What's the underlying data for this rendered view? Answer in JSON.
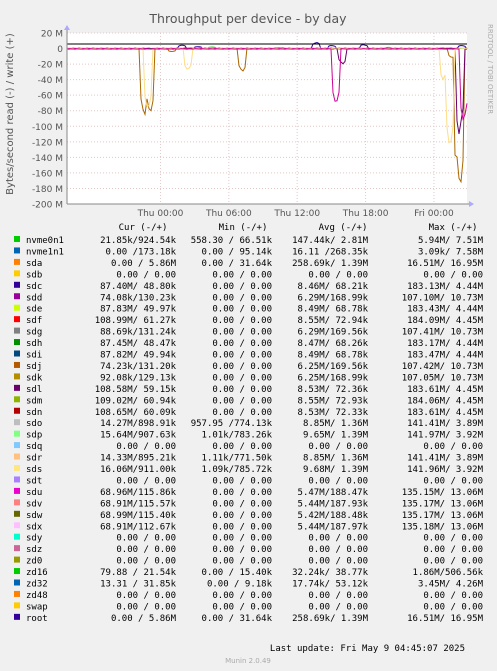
{
  "chart_data": {
    "type": "line",
    "title": "Throughput per device - by day",
    "ylabel": "Bytes/second read (-) / write (+)",
    "side_label": "RRDTOOL / TOBI OETIKER",
    "ylim": [
      -200,
      20
    ],
    "y_ticks": [
      {
        "value": 20,
        "label": "20 M"
      },
      {
        "value": 0,
        "label": "0"
      },
      {
        "value": -20,
        "label": "-20 M"
      },
      {
        "value": -40,
        "label": "-40 M"
      },
      {
        "value": -60,
        "label": "-60 M"
      },
      {
        "value": -80,
        "label": "-80 M"
      },
      {
        "value": -100,
        "label": "-100 M"
      },
      {
        "value": -120,
        "label": "-120 M"
      },
      {
        "value": -140,
        "label": "-140 M"
      },
      {
        "value": -160,
        "label": "-160 M"
      },
      {
        "value": -180,
        "label": "-180 M"
      },
      {
        "value": -200,
        "label": "-200 M"
      }
    ],
    "xlim": [
      -8.2,
      26.9
    ],
    "x_ticks": [
      {
        "value": 0,
        "label": "Thu 00:00"
      },
      {
        "value": 6,
        "label": "Thu 06:00"
      },
      {
        "value": 12,
        "label": "Thu 12:00"
      },
      {
        "value": 18,
        "label": "Thu 18:00"
      },
      {
        "value": 24,
        "label": "Fri 00:00"
      }
    ],
    "grid": true,
    "series": [
      {
        "name": "nvme0n1",
        "color": "#00cc00",
        "spikes": [
          {
            "x": 4.5,
            "y": 2
          },
          {
            "x": 10.5,
            "y": 1.5
          },
          {
            "x": 20.0,
            "y": 1.5
          }
        ]
      },
      {
        "name": "sdc",
        "color": "#330099",
        "spikes": [
          {
            "x": 1.9,
            "y": 4.5
          },
          {
            "x": 3.3,
            "y": 2.5
          },
          {
            "x": 13.7,
            "y": 8
          },
          {
            "x": 15.0,
            "y": 4
          },
          {
            "x": 17.8,
            "y": 5
          },
          {
            "x": 26.4,
            "y": 4
          }
        ]
      },
      {
        "name": "sdj",
        "color": "#aa6600",
        "spikes": [
          {
            "x": -1.4,
            "y": -88
          },
          {
            "x": -0.9,
            "y": -85
          },
          {
            "x": 1.0,
            "y": -4
          },
          {
            "x": 7.2,
            "y": -30
          },
          {
            "x": 25.6,
            "y": -12
          },
          {
            "x": 26.1,
            "y": -175
          },
          {
            "x": 26.3,
            "y": -183
          }
        ]
      },
      {
        "name": "sdl",
        "color": "#660066",
        "spikes": [
          {
            "x": 16.0,
            "y": -20
          },
          {
            "x": 26.2,
            "y": -110
          }
        ]
      },
      {
        "name": "sds",
        "color": "#ffdd88",
        "spikes": [
          {
            "x": -1.1,
            "y": -80
          },
          {
            "x": 2.4,
            "y": -28
          },
          {
            "x": 24.8,
            "y": -40
          },
          {
            "x": 25.4,
            "y": -130
          }
        ]
      },
      {
        "name": "sdu",
        "color": "#cc0099",
        "spikes": [
          {
            "x": 15.4,
            "y": -73
          },
          {
            "x": 26.6,
            "y": -95
          }
        ]
      }
    ],
    "legend": {
      "headers": [
        "Cur (-/+)",
        "Min (-/+)",
        "Avg (-/+)",
        "Max (-/+)"
      ],
      "rows": [
        {
          "name": "nvme0n1",
          "color": "#00cc00",
          "cur": "21.85k/924.54k",
          "min": "558.30 / 66.51k",
          "avg": "147.44k/  2.81M",
          "max": "5.94M/  7.51M"
        },
        {
          "name": "nvme1n1",
          "color": "#0066b3",
          "cur": "0.00 /173.18k",
          "min": "0.00 / 95.14k",
          "avg": "16.11 /268.35k",
          "max": "3.09k/  7.58M"
        },
        {
          "name": "sda",
          "color": "#ff8000",
          "cur": "0.00 /  5.86M",
          "min": "0.00 / 31.64k",
          "avg": "258.69k/  1.39M",
          "max": "16.51M/ 16.95M"
        },
        {
          "name": "sdb",
          "color": "#ffcc00",
          "cur": "0.00 /  0.00",
          "min": "0.00 /  0.00",
          "avg": "0.00 /  0.00",
          "max": "0.00 /  0.00"
        },
        {
          "name": "sdc",
          "color": "#330099",
          "cur": "87.40M/ 48.80k",
          "min": "0.00 /  0.00",
          "avg": "8.46M/ 68.21k",
          "max": "183.13M/  4.44M"
        },
        {
          "name": "sdd",
          "color": "#990099",
          "cur": "74.08k/130.23k",
          "min": "0.00 /  0.00",
          "avg": "6.29M/168.99k",
          "max": "107.10M/ 10.73M"
        },
        {
          "name": "sde",
          "color": "#ccff00",
          "cur": "87.83M/ 49.97k",
          "min": "0.00 /  0.00",
          "avg": "8.49M/ 68.78k",
          "max": "183.43M/  4.44M"
        },
        {
          "name": "sdf",
          "color": "#ff0000",
          "cur": "108.99M/ 61.27k",
          "min": "0.00 /  0.00",
          "avg": "8.55M/ 72.94k",
          "max": "184.09M/  4.45M"
        },
        {
          "name": "sdg",
          "color": "#808080",
          "cur": "88.69k/131.24k",
          "min": "0.00 /  0.00",
          "avg": "6.29M/169.56k",
          "max": "107.41M/ 10.73M"
        },
        {
          "name": "sdh",
          "color": "#008f00",
          "cur": "87.45M/ 48.47k",
          "min": "0.00 /  0.00",
          "avg": "8.47M/ 68.26k",
          "max": "183.17M/  4.44M"
        },
        {
          "name": "sdi",
          "color": "#00487d",
          "cur": "87.82M/ 49.94k",
          "min": "0.00 /  0.00",
          "avg": "8.49M/ 68.78k",
          "max": "183.47M/  4.44M"
        },
        {
          "name": "sdj",
          "color": "#b35a00",
          "cur": "74.23k/131.20k",
          "min": "0.00 /  0.00",
          "avg": "6.25M/169.56k",
          "max": "107.42M/ 10.73M"
        },
        {
          "name": "sdk",
          "color": "#b38f00",
          "cur": "92.08k/129.13k",
          "min": "0.00 /  0.00",
          "avg": "6.25M/168.99k",
          "max": "107.05M/ 10.73M"
        },
        {
          "name": "sdl",
          "color": "#6b006b",
          "cur": "108.58M/ 59.15k",
          "min": "0.00 /  0.00",
          "avg": "8.53M/ 72.36k",
          "max": "183.61M/  4.45M"
        },
        {
          "name": "sdm",
          "color": "#8fb300",
          "cur": "109.02M/ 60.94k",
          "min": "0.00 /  0.00",
          "avg": "8.55M/ 72.93k",
          "max": "184.06M/  4.45M"
        },
        {
          "name": "sdn",
          "color": "#b30000",
          "cur": "108.65M/ 60.09k",
          "min": "0.00 /  0.00",
          "avg": "8.53M/ 72.33k",
          "max": "183.61M/  4.45M"
        },
        {
          "name": "sdo",
          "color": "#bebebe",
          "cur": "14.27M/898.91k",
          "min": "957.95 /774.13k",
          "avg": "8.85M/  1.36M",
          "max": "141.41M/  3.89M"
        },
        {
          "name": "sdp",
          "color": "#80ff80",
          "cur": "15.64M/907.63k",
          "min": "1.01k/783.26k",
          "avg": "9.65M/  1.39M",
          "max": "141.97M/  3.92M"
        },
        {
          "name": "sdq",
          "color": "#80c9ff",
          "cur": "0.00 /  0.00",
          "min": "0.00 /  0.00",
          "avg": "0.00 /  0.00",
          "max": "0.00 /  0.00"
        },
        {
          "name": "sdr",
          "color": "#ffc080",
          "cur": "14.33M/895.21k",
          "min": "1.11k/771.50k",
          "avg": "8.85M/  1.36M",
          "max": "141.41M/  3.89M"
        },
        {
          "name": "sds",
          "color": "#ffe680",
          "cur": "16.06M/911.00k",
          "min": "1.09k/785.72k",
          "avg": "9.68M/  1.39M",
          "max": "141.96M/  3.92M"
        },
        {
          "name": "sdt",
          "color": "#aa80ff",
          "cur": "0.00 /  0.00",
          "min": "0.00 /  0.00",
          "avg": "0.00 /  0.00",
          "max": "0.00 /  0.00"
        },
        {
          "name": "sdu",
          "color": "#ee00cc",
          "cur": "68.96M/115.86k",
          "min": "0.00 /  0.00",
          "avg": "5.47M/188.47k",
          "max": "135.15M/ 13.06M"
        },
        {
          "name": "sdv",
          "color": "#ff8080",
          "cur": "68.91M/115.57k",
          "min": "0.00 /  0.00",
          "avg": "5.44M/187.93k",
          "max": "135.17M/ 13.06M"
        },
        {
          "name": "sdw",
          "color": "#666600",
          "cur": "68.99M/115.40k",
          "min": "0.00 /  0.00",
          "avg": "5.42M/188.48k",
          "max": "135.17M/ 13.06M"
        },
        {
          "name": "sdx",
          "color": "#ffbfff",
          "cur": "68.91M/112.67k",
          "min": "0.00 /  0.00",
          "avg": "5.44M/187.97k",
          "max": "135.18M/ 13.06M"
        },
        {
          "name": "sdy",
          "color": "#00ffcc",
          "cur": "0.00 /  0.00",
          "min": "0.00 /  0.00",
          "avg": "0.00 /  0.00",
          "max": "0.00 /  0.00"
        },
        {
          "name": "sdz",
          "color": "#cc6699",
          "cur": "0.00 /  0.00",
          "min": "0.00 /  0.00",
          "avg": "0.00 /  0.00",
          "max": "0.00 /  0.00"
        },
        {
          "name": "zd0",
          "color": "#999900",
          "cur": "0.00 /  0.00",
          "min": "0.00 /  0.00",
          "avg": "0.00 /  0.00",
          "max": "0.00 /  0.00"
        },
        {
          "name": "zd16",
          "color": "#00cc00",
          "cur": "79.88 / 21.54k",
          "min": "0.00 / 15.40k",
          "avg": "32.24k/ 38.77k",
          "max": "1.86M/506.56k"
        },
        {
          "name": "zd32",
          "color": "#0066b3",
          "cur": "13.31 / 31.85k",
          "min": "0.00 /  9.18k",
          "avg": "17.74k/ 53.12k",
          "max": "3.45M/  4.26M"
        },
        {
          "name": "zd48",
          "color": "#ff8000",
          "cur": "0.00 /  0.00",
          "min": "0.00 /  0.00",
          "avg": "0.00 /  0.00",
          "max": "0.00 /  0.00"
        },
        {
          "name": "swap",
          "color": "#ffcc00",
          "cur": "0.00 /  0.00",
          "min": "0.00 /  0.00",
          "avg": "0.00 /  0.00",
          "max": "0.00 /  0.00"
        },
        {
          "name": "root",
          "color": "#330099",
          "cur": "0.00 /  5.86M",
          "min": "0.00 / 31.64k",
          "avg": "258.69k/  1.39M",
          "max": "16.51M/ 16.95M"
        }
      ]
    },
    "last_update": "Last update: Fri May  9 04:45:07 2025",
    "footer": "Munin 2.0.49"
  }
}
